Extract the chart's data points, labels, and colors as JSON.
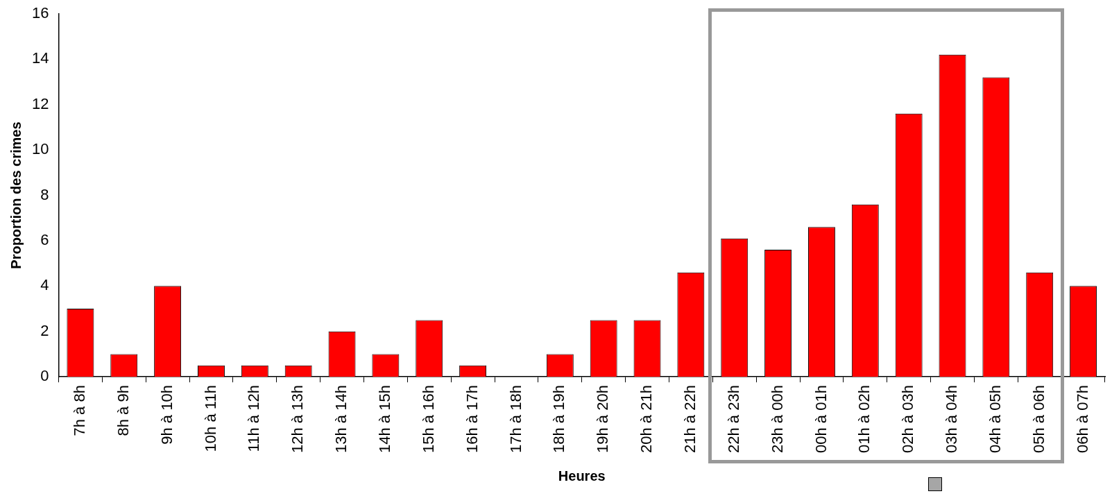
{
  "chart_data": {
    "type": "bar",
    "xlabel": "Heures",
    "ylabel": "Proportion des crimes",
    "categories": [
      "7h à 8h",
      "8h à 9h",
      "9h à 10h",
      "10h à 11h",
      "11h à 12h",
      "12h à 13h",
      "13h à 14h",
      "14h à 15h",
      "15h à 16h",
      "16h à 17h",
      "17h à 18h",
      "18h à 19h",
      "19h à 20h",
      "20h à 21h",
      "21h à 22h",
      "22h à 23h",
      "23h à 00h",
      "00h à 01h",
      "01h à 02h",
      "02h à 03h",
      "03h à 04h",
      "04h à 05h",
      "05h à 06h",
      "06h à 07h"
    ],
    "values": [
      3,
      1,
      4,
      0.5,
      0.5,
      0.5,
      2,
      1,
      2.5,
      0.5,
      0,
      1,
      2.5,
      2.5,
      4.6,
      6.1,
      5.6,
      6.6,
      7.6,
      11.6,
      14.2,
      13.2,
      4.6,
      4
    ],
    "color": "#ff0000",
    "ylim": [
      0,
      16
    ],
    "yticks": [
      0,
      2,
      4,
      6,
      8,
      10,
      12,
      14,
      16
    ],
    "grid": false,
    "legend": false
  }
}
